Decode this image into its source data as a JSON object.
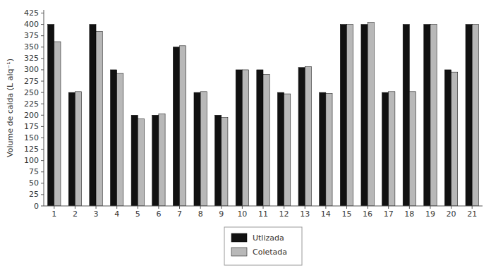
{
  "chart_data": {
    "type": "bar",
    "categories": [
      1,
      2,
      3,
      4,
      5,
      6,
      7,
      8,
      9,
      10,
      11,
      12,
      13,
      14,
      15,
      16,
      17,
      18,
      19,
      20,
      21
    ],
    "series": [
      {
        "name": "Utlizada",
        "color": "#111111",
        "values": [
          400,
          250,
          400,
          300,
          200,
          200,
          350,
          250,
          200,
          300,
          300,
          250,
          305,
          250,
          400,
          400,
          250,
          400,
          400,
          300,
          400
        ]
      },
      {
        "name": "Coletada",
        "color": "#b8b8b8",
        "values": [
          362,
          252,
          385,
          292,
          192,
          203,
          353,
          252,
          195,
          300,
          290,
          247,
          307,
          248,
          400,
          405,
          252,
          252,
          400,
          295,
          400
        ]
      }
    ],
    "ylabel": "Volume de calda (L alq⁻¹)",
    "ylim": [
      0,
      432
    ],
    "yticks": [
      0,
      25,
      50,
      75,
      100,
      125,
      150,
      175,
      200,
      225,
      250,
      275,
      300,
      325,
      350,
      375,
      400,
      425
    ],
    "grid": false,
    "legend": "bottom"
  }
}
